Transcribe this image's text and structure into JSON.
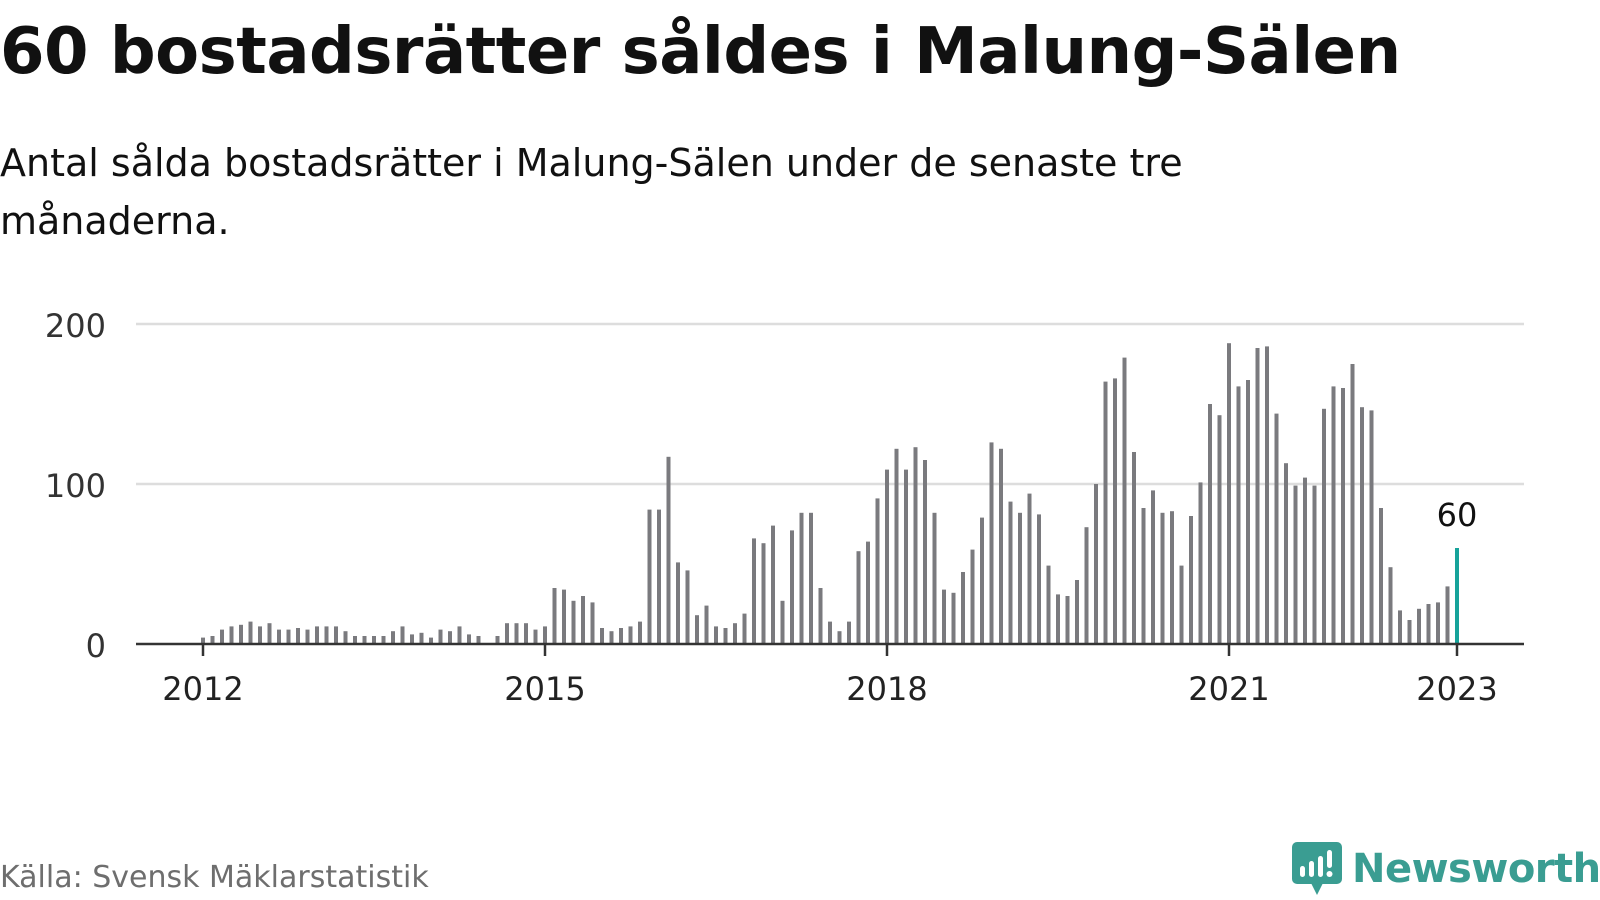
{
  "title": "60 bostadsrätter såldes i Malung-Sälen",
  "subtitle": "Antal sålda bostadsrätter i Malung-Sälen under de senaste tre månaderna.",
  "source": "Källa: Svensk Mäklarstatistik",
  "brand": {
    "name": "Newsworthy",
    "icon": "newsworthy-logo-icon",
    "color": "#3a9d92"
  },
  "colors": {
    "bar": "#7a7a7e",
    "highlight": "#16a39a",
    "grid": "#dddddd",
    "axis": "#333333"
  },
  "chart_data": {
    "type": "bar",
    "title": "60 bostadsrätter såldes i Malung-Sälen",
    "subtitle": "Antal sålda bostadsrätter i Malung-Sälen under de senaste tre månaderna.",
    "x_start": "2012-01",
    "x_step": "month",
    "ylim": [
      0,
      200
    ],
    "yticks": [
      0,
      100,
      200
    ],
    "xticks": [
      {
        "label": "2012",
        "index": 0
      },
      {
        "label": "2015",
        "index": 36
      },
      {
        "label": "2018",
        "index": 72
      },
      {
        "label": "2021",
        "index": 108
      },
      {
        "label": "2023",
        "index": 132
      }
    ],
    "grid": "horizontal",
    "highlight_index": 132,
    "annotation": {
      "label": "60",
      "index": 132
    },
    "values": [
      4,
      5,
      9,
      11,
      12,
      14,
      11,
      13,
      9,
      9,
      10,
      9,
      11,
      11,
      11,
      8,
      5,
      5,
      5,
      5,
      8,
      11,
      6,
      7,
      4,
      9,
      8,
      11,
      6,
      5,
      0,
      5,
      13,
      13,
      13,
      9,
      11,
      35,
      34,
      27,
      30,
      26,
      10,
      8,
      10,
      11,
      14,
      84,
      84,
      117,
      51,
      46,
      18,
      24,
      11,
      10,
      13,
      19,
      66,
      63,
      74,
      27,
      71,
      82,
      82,
      35,
      14,
      8,
      14,
      58,
      64,
      91,
      109,
      122,
      109,
      123,
      115,
      82,
      34,
      32,
      45,
      59,
      79,
      126,
      122,
      89,
      82,
      94,
      81,
      49,
      31,
      30,
      40,
      73,
      100,
      164,
      166,
      179,
      120,
      85,
      96,
      82,
      83,
      49,
      80,
      101,
      150,
      143,
      188,
      161,
      165,
      185,
      186,
      144,
      113,
      99,
      104,
      99,
      147,
      161,
      160,
      175,
      148,
      146,
      85,
      48,
      21,
      15,
      22,
      25,
      26,
      36,
      60
    ]
  }
}
